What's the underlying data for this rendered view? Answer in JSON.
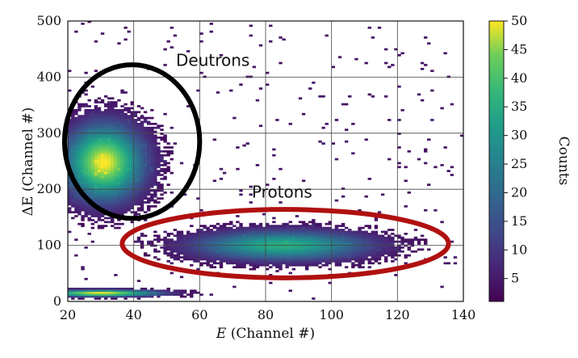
{
  "chart_data": {
    "type": "heatmap",
    "title": "",
    "xlabel": "(Channel #)",
    "xlabel_symbol": "E",
    "ylabel": "(Channel #)",
    "ylabel_symbol": "ΔE",
    "xlim": [
      20,
      140
    ],
    "ylim": [
      0,
      500
    ],
    "xticks": [
      20,
      40,
      60,
      80,
      100,
      120,
      140
    ],
    "yticks": [
      0,
      100,
      200,
      300,
      400,
      500
    ],
    "grid": true,
    "colormap": "viridis",
    "colorbar": {
      "label": "Counts",
      "range": [
        1,
        50
      ],
      "ticks": [
        5,
        10,
        15,
        20,
        25,
        30,
        35,
        40,
        45,
        50
      ]
    },
    "clusters": [
      {
        "name": "Deutrons",
        "center_x": 31,
        "center_y": 248,
        "peak_counts": 50,
        "sigma_x": 8,
        "sigma_y": 45
      },
      {
        "name": "Protons",
        "center_x": 85,
        "center_y": 100,
        "peak_counts": 35,
        "sigma_x": 18,
        "sigma_y": 18
      },
      {
        "name": "",
        "center_x": 30,
        "center_y": 15,
        "peak_counts": 50,
        "sigma_x": 12,
        "sigma_y": 4
      }
    ],
    "annotations": [
      {
        "text": "Deutrons",
        "x": 64,
        "y": 420
      },
      {
        "text": "Protons",
        "x": 85,
        "y": 185
      }
    ],
    "highlight_ellipses": [
      {
        "label": "Deutrons",
        "cx": 39.5,
        "cy": 285,
        "rx": 20.5,
        "ry": 137,
        "color": "#000000"
      },
      {
        "label": "Protons",
        "cx": 86,
        "cy": 103,
        "rx": 49.5,
        "ry": 61,
        "color": "#b01010"
      }
    ]
  }
}
